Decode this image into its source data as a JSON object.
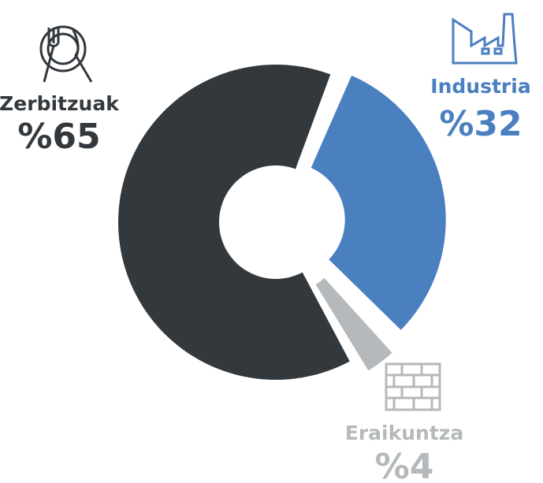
{
  "chart_data": {
    "type": "donut",
    "categories": [
      "Zerbitzuak",
      "Industria",
      "Eraikuntza"
    ],
    "values": [
      65,
      32,
      4
    ],
    "value_labels": [
      "%65",
      "%32",
      "%4"
    ],
    "colors": [
      "#33383d",
      "#4a7fc0",
      "#b5b9bb"
    ]
  }
}
